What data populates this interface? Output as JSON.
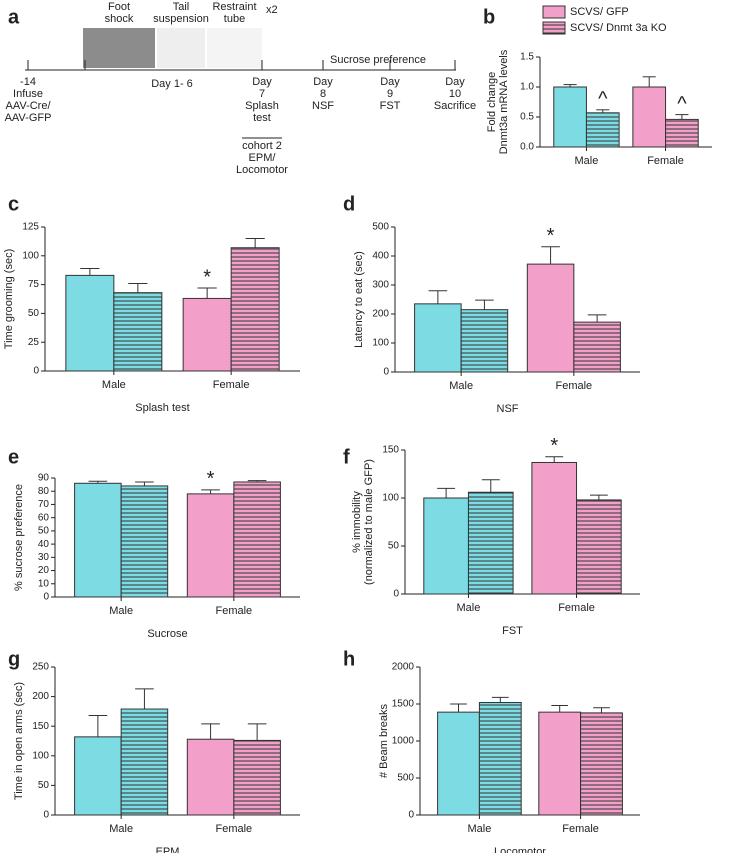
{
  "timeline": {
    "panel": "a",
    "photos": [
      [
        "Foot",
        "shock"
      ],
      [
        "Tail",
        "suspension"
      ],
      [
        "Restraint",
        "tube"
      ]
    ],
    "repeat": "x2",
    "period": "Day  1- 6",
    "sucrose": "Sucrose preference",
    "events": [
      [
        "-14",
        "Infuse",
        "AAV-Cre/",
        "AAV-GFP"
      ],
      [],
      [
        "Day",
        "7",
        "Splash",
        "test"
      ],
      [
        "Day",
        "8",
        "NSF"
      ],
      [
        "Day",
        "9",
        "FST"
      ],
      [
        "Day",
        "10",
        "Sacrifice"
      ]
    ],
    "cohort": [
      "cohort 2",
      "EPM/",
      "Locomotor"
    ]
  },
  "chart_data": [
    {
      "type": "bar",
      "panel": "b",
      "ylabel": [
        "Fold change",
        "Dnmt3a mRNA levels"
      ],
      "categories": [
        "Male",
        "Female"
      ],
      "category_colors": [
        "#7ddbe3",
        "#f2a0c9"
      ],
      "legend": "top",
      "legend_color": "#f2a0c9",
      "series": [
        {
          "name": "SCVS/ GFP",
          "hatch": false,
          "values": [
            1.0,
            1.0
          ],
          "errors": [
            0.04,
            0.17
          ]
        },
        {
          "name": "SCVS/ Dnmt 3a KO",
          "hatch": true,
          "values": [
            0.57,
            0.46
          ],
          "errors": [
            0.05,
            0.08
          ],
          "markers": [
            "^",
            "^"
          ]
        }
      ],
      "ylim": [
        0,
        1.5
      ],
      "yticks": [
        {
          "value": 0,
          "label": "0.0"
        },
        0.5,
        {
          "value": 1,
          "label": "1.0"
        },
        1.5
      ]
    },
    {
      "type": "bar",
      "panel": "c",
      "ylabel": "Time grooming (sec)",
      "xlabel": "Splash test",
      "categories": [
        "Male",
        "Female"
      ],
      "category_colors": [
        "#7ddbe3",
        "#f2a0c9"
      ],
      "series": [
        {
          "hatch": false,
          "values": [
            83,
            63
          ],
          "errors": [
            6,
            9
          ],
          "markers": [
            null,
            "*"
          ]
        },
        {
          "hatch": true,
          "values": [
            68,
            107
          ],
          "errors": [
            8,
            8
          ]
        }
      ],
      "ylim": [
        0,
        125
      ],
      "yticks": [
        0,
        25,
        50,
        75,
        100,
        125
      ]
    },
    {
      "type": "bar",
      "panel": "d",
      "ylabel": "Latency to eat (sec)",
      "xlabel": "NSF",
      "categories": [
        "Male",
        "Female"
      ],
      "category_colors": [
        "#7ddbe3",
        "#f2a0c9"
      ],
      "series": [
        {
          "hatch": false,
          "values": [
            235,
            372
          ],
          "errors": [
            45,
            60
          ],
          "markers": [
            null,
            "*"
          ]
        },
        {
          "hatch": true,
          "values": [
            215,
            172
          ],
          "errors": [
            33,
            25
          ]
        }
      ],
      "ylim": [
        0,
        500
      ],
      "yticks": [
        0,
        100,
        200,
        300,
        400,
        500
      ]
    },
    {
      "type": "bar",
      "panel": "e",
      "ylabel": "% sucrose preference",
      "xlabel": "Sucrose",
      "categories": [
        "Male",
        "Female"
      ],
      "category_colors": [
        "#7ddbe3",
        "#f2a0c9"
      ],
      "series": [
        {
          "hatch": false,
          "values": [
            86,
            78
          ],
          "errors": [
            1.5,
            3
          ],
          "markers": [
            null,
            "*"
          ]
        },
        {
          "hatch": true,
          "values": [
            84,
            87
          ],
          "errors": [
            3,
            1
          ]
        }
      ],
      "ylim": [
        0,
        90
      ],
      "yticks": [
        0,
        10,
        20,
        30,
        40,
        50,
        60,
        70,
        80,
        90
      ]
    },
    {
      "type": "bar",
      "panel": "f",
      "ylabel": [
        "% immobility",
        "(normalized to male GFP)"
      ],
      "xlabel": "FST",
      "categories": [
        "Male",
        "Female"
      ],
      "category_colors": [
        "#7ddbe3",
        "#f2a0c9"
      ],
      "series": [
        {
          "hatch": false,
          "values": [
            100,
            137
          ],
          "errors": [
            10,
            6
          ],
          "markers": [
            null,
            "*"
          ]
        },
        {
          "hatch": true,
          "values": [
            106,
            98
          ],
          "errors": [
            13,
            5
          ]
        }
      ],
      "ylim": [
        0,
        150
      ],
      "yticks": [
        0,
        50,
        100,
        150
      ]
    },
    {
      "type": "bar",
      "panel": "g",
      "ylabel": "Time in open arms (sec)",
      "xlabel": "EPM",
      "categories": [
        "Male",
        "Female"
      ],
      "category_colors": [
        "#7ddbe3",
        "#f2a0c9"
      ],
      "series": [
        {
          "hatch": false,
          "values": [
            132,
            128
          ],
          "errors": [
            36,
            26
          ]
        },
        {
          "hatch": true,
          "values": [
            179,
            126
          ],
          "errors": [
            34,
            28
          ]
        }
      ],
      "ylim": [
        0,
        250
      ],
      "yticks": [
        0,
        50,
        100,
        150,
        200,
        250
      ]
    },
    {
      "type": "bar",
      "panel": "h",
      "ylabel": "# Beam breaks",
      "xlabel": "Locomotor",
      "categories": [
        "Male",
        "Female"
      ],
      "category_colors": [
        "#7ddbe3",
        "#f2a0c9"
      ],
      "series": [
        {
          "hatch": false,
          "values": [
            1390,
            1390
          ],
          "errors": [
            110,
            90
          ]
        },
        {
          "hatch": true,
          "values": [
            1520,
            1380
          ],
          "errors": [
            70,
            70
          ]
        }
      ],
      "ylim": [
        0,
        2000
      ],
      "yticks": [
        0,
        500,
        1000,
        1500,
        2000
      ]
    }
  ]
}
